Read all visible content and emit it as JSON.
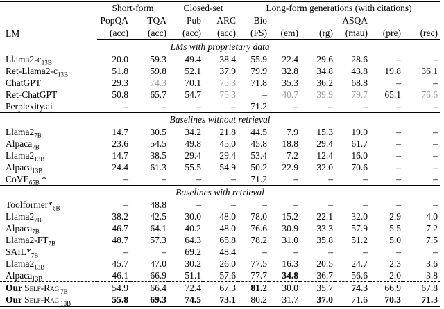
{
  "table": {
    "colors": {
      "muted_value": "#9b9b9b",
      "text": "#000000"
    },
    "header": {
      "lm_label": "LM",
      "groups": [
        {
          "label": "Short-form",
          "span": 2
        },
        {
          "label": "Closed-set",
          "span": 2
        },
        {
          "label": "Long-form generations (with citations)",
          "span": 6
        }
      ],
      "columns": [
        {
          "name": "PopQA",
          "metric": "(acc)"
        },
        {
          "name": "TQA",
          "metric": "(acc)"
        },
        {
          "name": "Pub",
          "metric": "(acc)"
        },
        {
          "name": "ARC",
          "metric": "(acc)"
        },
        {
          "name": "Bio",
          "metric": "(FS)"
        },
        {
          "name": "",
          "metric": "(em)"
        },
        {
          "name": "",
          "metric": "(rg)"
        },
        {
          "name": "ASQA",
          "metric": "(mau)"
        },
        {
          "name": "",
          "metric": "(pre)"
        },
        {
          "name": "",
          "metric": "(rec)"
        }
      ]
    },
    "sections": [
      {
        "title": "LMs with proprietary data",
        "rows": [
          {
            "lm": {
              "text": "Llama2-c",
              "sub": "13B"
            },
            "values": [
              "20.0",
              "59.3",
              "49.4",
              "38.4",
              "55.9",
              "22.4",
              "29.6",
              "28.6",
              "–",
              "–"
            ]
          },
          {
            "lm": {
              "text": "Ret-Llama2-c",
              "sub": "13B"
            },
            "values": [
              "51.8",
              "59.8",
              "52.1",
              "37.9",
              "79.9",
              "32.8",
              "34.8",
              "43.8",
              "19.8",
              "36.1"
            ]
          },
          {
            "lm": {
              "text": "ChatGPT"
            },
            "values": [
              "29.3",
              {
                "v": "74.3",
                "style": "gray"
              },
              "70.1",
              {
                "v": "75.3",
                "style": "gray"
              },
              "71.8",
              "35.3",
              "36.2",
              "68.8",
              "–",
              "–"
            ]
          },
          {
            "lm": {
              "text": "Ret-ChatGPT"
            },
            "values": [
              "50.8",
              "65.7",
              "54.7",
              {
                "v": "75.3",
                "style": "gray"
              },
              "–",
              {
                "v": "40.7",
                "style": "gray"
              },
              {
                "v": "39.9",
                "style": "gray"
              },
              {
                "v": "79.7",
                "style": "gray"
              },
              "65.1",
              {
                "v": "76.6",
                "style": "gray"
              }
            ]
          },
          {
            "lm": {
              "text": "Perplexity.ai"
            },
            "values": [
              "–",
              "–",
              "–",
              "–",
              "71.2",
              "–",
              "–",
              "–",
              "–",
              "–"
            ]
          }
        ]
      },
      {
        "title": "Baselines without retrieval",
        "rows": [
          {
            "lm": {
              "text": "Llama2",
              "sub": "7B"
            },
            "values": [
              "14.7",
              "30.5",
              "34.2",
              "21.8",
              "44.5",
              "7.9",
              "15.3",
              "19.0",
              "–",
              "–"
            ]
          },
          {
            "lm": {
              "text": "Alpaca",
              "sub": "7B"
            },
            "values": [
              "23.6",
              "54.5",
              "49.8",
              "45.0",
              "45.8",
              "18.8",
              "29.4",
              "61.7",
              "–",
              "–"
            ]
          },
          {
            "lm": {
              "text": "Llama2",
              "sub": "13B"
            },
            "values": [
              "14.7",
              "38.5",
              "29.4",
              "29.4",
              "53.4",
              "7.2",
              "12.4",
              "16.0",
              "–",
              "–"
            ]
          },
          {
            "lm": {
              "text": "Alpaca",
              "sub": "13B"
            },
            "values": [
              "24.4",
              "61.3",
              "55.5",
              "54.9",
              "50.2",
              "22.9",
              "32.0",
              "70.6",
              "–",
              "–"
            ]
          },
          {
            "lm": {
              "text": "CoVE",
              "sub": "65B",
              "suffix": " *"
            },
            "values": [
              "–",
              "–",
              "–",
              "–",
              "71.2",
              "–",
              "–",
              "–",
              "–",
              "–"
            ]
          }
        ]
      },
      {
        "title": "Baselines with retrieval",
        "rows": [
          {
            "lm": {
              "text": "Toolformer*",
              "sub": "6B"
            },
            "values": [
              "–",
              "48.8",
              "–",
              "–",
              "–",
              "–",
              "–",
              "–",
              "–",
              "–"
            ]
          },
          {
            "lm": {
              "text": "Llama2",
              "sub": "7B"
            },
            "values": [
              "38.2",
              "42.5",
              "30.0",
              "48.0",
              "78.0",
              "15.2",
              "22.1",
              "32.0",
              "2.9",
              "4.0"
            ]
          },
          {
            "lm": {
              "text": "Alpaca",
              "sub": "7B"
            },
            "values": [
              "46.7",
              "64.1",
              "40.2",
              "48.0",
              "76.6",
              "30.9",
              "33.3",
              "57.9",
              "5.5",
              "7.2"
            ]
          },
          {
            "lm": {
              "text": "Llama2-FT",
              "sub": "7B"
            },
            "values": [
              "48.7",
              "57.3",
              "64.3",
              "65.8",
              "78.2",
              "31.0",
              "35.8",
              "51.2",
              "5.0",
              "7.5"
            ]
          },
          {
            "lm": {
              "text": "SAIL*",
              "sub": "7B"
            },
            "values": [
              "–",
              "–",
              "69.2",
              "48.4",
              "–",
              "–",
              "–",
              "–",
              "–",
              "–"
            ]
          },
          {
            "lm": {
              "text": "Llama2",
              "sub": "13B"
            },
            "values": [
              "45.7",
              "47.0",
              "30.2",
              "26.0",
              "77.5",
              "16.3",
              "20.5",
              "24.7",
              "2.3",
              "3.6"
            ]
          },
          {
            "lm": {
              "text": "Alpaca",
              "sub": "13B"
            },
            "values": [
              "46.1",
              "66.9",
              "51.1",
              "57.6",
              "77.7",
              {
                "v": "34.8",
                "style": "bold"
              },
              "36.7",
              "56.6",
              "2.0",
              "3.8"
            ]
          },
          {
            "rule_above": "dashed",
            "lm": {
              "prefix": "Our ",
              "text": "Self-Rag",
              "smallcaps": true,
              "sub": "7B"
            },
            "values": [
              "54.9",
              "66.4",
              "72.4",
              "67.3",
              {
                "v": "81.2",
                "style": "bold"
              },
              "30.0",
              "35.7",
              {
                "v": "74.3",
                "style": "bold"
              },
              "66.9",
              "67.8"
            ]
          },
          {
            "lm": {
              "prefix": "Our ",
              "text": "Self-Rag",
              "smallcaps": true,
              "sub": "13B"
            },
            "values": [
              {
                "v": "55.8",
                "style": "bold"
              },
              {
                "v": "69.3",
                "style": "bold"
              },
              {
                "v": "74.5",
                "style": "bold"
              },
              {
                "v": "73.1",
                "style": "bold"
              },
              "80.2",
              "31.7",
              {
                "v": "37.0",
                "style": "bold"
              },
              "71.6",
              {
                "v": "70.3",
                "style": "bold"
              },
              {
                "v": "71.3",
                "style": "bold"
              }
            ]
          }
        ]
      }
    ]
  }
}
